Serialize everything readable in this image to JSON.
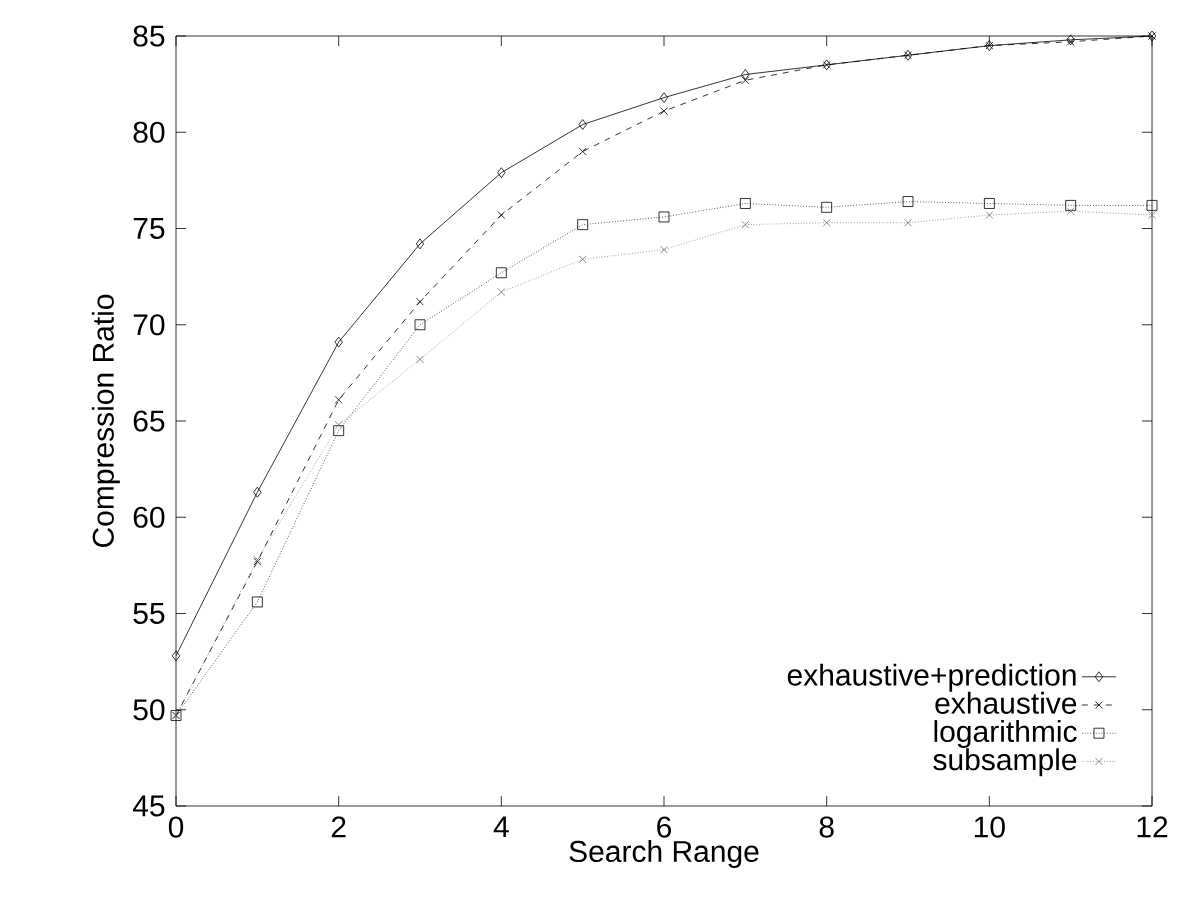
{
  "chart_data": {
    "type": "line",
    "xlabel": "Search Range",
    "ylabel": "Compression Ratio",
    "x": [
      0,
      1,
      2,
      3,
      4,
      5,
      6,
      7,
      8,
      9,
      10,
      11,
      12
    ],
    "xlim": [
      0,
      12
    ],
    "xticks": [
      0,
      2,
      4,
      6,
      8,
      10,
      12
    ],
    "ylim": [
      45,
      85
    ],
    "yticks": [
      45,
      50,
      55,
      60,
      65,
      70,
      75,
      80,
      85
    ],
    "legend": "bottom right",
    "grid": false,
    "series": [
      {
        "name": "exhaustive+prediction",
        "color": "#000000",
        "marker": "diamond",
        "line_style": "solid",
        "values": [
          52.8,
          61.3,
          69.1,
          74.2,
          77.9,
          80.4,
          81.8,
          83.0,
          83.5,
          84.0,
          84.5,
          84.8,
          85.0
        ]
      },
      {
        "name": "exhaustive",
        "color": "#000000",
        "marker": "cross",
        "line_style": "dashed",
        "values": [
          49.7,
          57.7,
          66.1,
          71.2,
          75.7,
          79.0,
          81.1,
          82.7,
          83.5,
          84.0,
          84.5,
          84.7,
          85.0
        ]
      },
      {
        "name": "logarithmic",
        "color": "#000000",
        "marker": "square",
        "line_style": "dotted",
        "values": [
          49.7,
          55.6,
          64.5,
          70.0,
          72.7,
          75.2,
          75.6,
          76.3,
          76.1,
          76.4,
          76.3,
          76.2,
          76.2
        ]
      },
      {
        "name": "subsample",
        "color": "#707070",
        "marker": "cross",
        "line_style": "dotted",
        "values": [
          49.7,
          57.8,
          64.8,
          68.2,
          71.7,
          73.4,
          73.9,
          75.2,
          75.3,
          75.3,
          75.7,
          75.9,
          75.7
        ]
      }
    ]
  }
}
